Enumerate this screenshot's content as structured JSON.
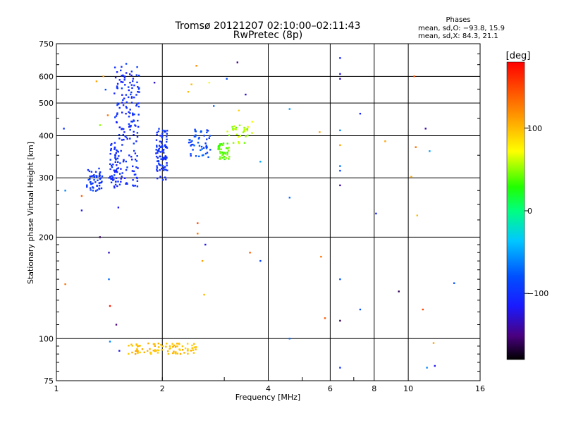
{
  "chart_data": {
    "type": "scatter",
    "title": "Tromsø 20121207 02:10:00–02:11:43",
    "subtitle": "RwPretec (8p)",
    "xlabel": "Frequency [MHz]",
    "ylabel": "Stationary phase Virtual Height [km]",
    "x_scale": "log",
    "y_scale": "log",
    "xlim": [
      1,
      16
    ],
    "ylim": [
      75,
      750
    ],
    "x_ticks": [
      "1",
      "2",
      "4",
      "6",
      "8",
      "10",
      "16"
    ],
    "x_tick_values": [
      1,
      2,
      4,
      6,
      8,
      10,
      16
    ],
    "y_ticks": [
      "75",
      "100",
      "200",
      "300",
      "400",
      "500",
      "600",
      "750"
    ],
    "y_tick_values": [
      75,
      100,
      200,
      300,
      400,
      500,
      600,
      750
    ],
    "grid": true,
    "stats": {
      "heading": "Phases",
      "line_o": "mean, sd,O: −93.8, 15.9",
      "line_x": "mean, sd,X:  84.3, 21.1"
    },
    "colorbar": {
      "label": "[deg]",
      "ticks": [
        "100",
        "0",
        "−100"
      ],
      "tick_values": [
        100,
        0,
        -100
      ],
      "range": [
        -180,
        180
      ]
    },
    "clusters": [
      {
        "x": [
          1.22,
          1.35
        ],
        "y": [
          270,
          320
        ],
        "phase_range": [
          -105,
          -90
        ],
        "n": 50
      },
      {
        "x": [
          1.4,
          1.5
        ],
        "y": [
          290,
          380
        ],
        "phase_range": [
          -110,
          -95
        ],
        "n": 40
      },
      {
        "x": [
          1.46,
          1.72
        ],
        "y": [
          280,
          660
        ],
        "phase_range": [
          -115,
          -90
        ],
        "n": 180
      },
      {
        "x": [
          1.92,
          2.07
        ],
        "y": [
          295,
          420
        ],
        "phase_range": [
          -110,
          -90
        ],
        "n": 90
      },
      {
        "x": [
          2.38,
          2.75
        ],
        "y": [
          345,
          420
        ],
        "phase_range": [
          -100,
          -70
        ],
        "n": 50
      },
      {
        "x": [
          2.88,
          3.1
        ],
        "y": [
          340,
          380
        ],
        "phase_range": [
          30,
          50
        ],
        "n": 45
      },
      {
        "x": [
          3.05,
          3.6
        ],
        "y": [
          380,
          430
        ],
        "phase_range": [
          40,
          70
        ],
        "n": 30
      },
      {
        "x": [
          1.6,
          2.5
        ],
        "y": [
          90,
          97
        ],
        "phase_range": [
          90,
          110
        ],
        "n": 90
      }
    ],
    "points": [
      {
        "x": 1.05,
        "y": 420,
        "p": -100
      },
      {
        "x": 1.06,
        "y": 275,
        "p": -60
      },
      {
        "x": 1.06,
        "y": 145,
        "p": 130
      },
      {
        "x": 1.18,
        "y": 240,
        "p": -120
      },
      {
        "x": 1.18,
        "y": 265,
        "p": 140
      },
      {
        "x": 1.27,
        "y": 275,
        "p": -80
      },
      {
        "x": 1.3,
        "y": 580,
        "p": 110
      },
      {
        "x": 1.33,
        "y": 430,
        "p": 50
      },
      {
        "x": 1.33,
        "y": 200,
        "p": -160
      },
      {
        "x": 1.36,
        "y": 600,
        "p": 110
      },
      {
        "x": 1.38,
        "y": 548,
        "p": -80
      },
      {
        "x": 1.4,
        "y": 460,
        "p": 130
      },
      {
        "x": 1.41,
        "y": 180,
        "p": -130
      },
      {
        "x": 1.41,
        "y": 150,
        "p": -70
      },
      {
        "x": 1.42,
        "y": 125,
        "p": 170
      },
      {
        "x": 1.42,
        "y": 98,
        "p": -60
      },
      {
        "x": 1.48,
        "y": 110,
        "p": -150
      },
      {
        "x": 1.5,
        "y": 245,
        "p": -120
      },
      {
        "x": 1.51,
        "y": 92,
        "p": -120
      },
      {
        "x": 1.9,
        "y": 575,
        "p": -130
      },
      {
        "x": 2.37,
        "y": 540,
        "p": 100
      },
      {
        "x": 2.42,
        "y": 568,
        "p": 100
      },
      {
        "x": 2.5,
        "y": 645,
        "p": 120
      },
      {
        "x": 2.52,
        "y": 220,
        "p": 150
      },
      {
        "x": 2.52,
        "y": 205,
        "p": 130
      },
      {
        "x": 2.6,
        "y": 170,
        "p": 110
      },
      {
        "x": 2.63,
        "y": 135,
        "p": 100
      },
      {
        "x": 2.65,
        "y": 190,
        "p": -120
      },
      {
        "x": 2.72,
        "y": 575,
        "p": 70
      },
      {
        "x": 2.8,
        "y": 490,
        "p": -70
      },
      {
        "x": 3.05,
        "y": 590,
        "p": -80
      },
      {
        "x": 3.27,
        "y": 660,
        "p": -150
      },
      {
        "x": 3.3,
        "y": 475,
        "p": 90
      },
      {
        "x": 3.45,
        "y": 530,
        "p": -130
      },
      {
        "x": 3.55,
        "y": 180,
        "p": 140
      },
      {
        "x": 3.6,
        "y": 440,
        "p": 70
      },
      {
        "x": 3.8,
        "y": 335,
        "p": -50
      },
      {
        "x": 3.8,
        "y": 170,
        "p": -90
      },
      {
        "x": 4.6,
        "y": 480,
        "p": -50
      },
      {
        "x": 4.6,
        "y": 262,
        "p": -70
      },
      {
        "x": 4.6,
        "y": 100,
        "p": -70
      },
      {
        "x": 5.6,
        "y": 410,
        "p": 110
      },
      {
        "x": 5.65,
        "y": 175,
        "p": 130
      },
      {
        "x": 5.8,
        "y": 115,
        "p": 140
      },
      {
        "x": 6.4,
        "y": 680,
        "p": -110
      },
      {
        "x": 6.4,
        "y": 610,
        "p": -120
      },
      {
        "x": 6.4,
        "y": 590,
        "p": -130
      },
      {
        "x": 6.4,
        "y": 415,
        "p": -60
      },
      {
        "x": 6.4,
        "y": 375,
        "p": 110
      },
      {
        "x": 6.4,
        "y": 325,
        "p": -70
      },
      {
        "x": 6.4,
        "y": 315,
        "p": -90
      },
      {
        "x": 6.4,
        "y": 285,
        "p": -140
      },
      {
        "x": 6.4,
        "y": 150,
        "p": -80
      },
      {
        "x": 6.4,
        "y": 113,
        "p": -160
      },
      {
        "x": 6.4,
        "y": 82,
        "p": -100
      },
      {
        "x": 7.3,
        "y": 465,
        "p": -110
      },
      {
        "x": 7.3,
        "y": 122,
        "p": -80
      },
      {
        "x": 8.1,
        "y": 235,
        "p": -110
      },
      {
        "x": 8.6,
        "y": 385,
        "p": 110
      },
      {
        "x": 9.4,
        "y": 138,
        "p": -160
      },
      {
        "x": 10.2,
        "y": 302,
        "p": 110
      },
      {
        "x": 10.4,
        "y": 600,
        "p": 140
      },
      {
        "x": 10.5,
        "y": 370,
        "p": 130
      },
      {
        "x": 10.6,
        "y": 232,
        "p": 100
      },
      {
        "x": 11.0,
        "y": 122,
        "p": 150
      },
      {
        "x": 11.2,
        "y": 420,
        "p": -140
      },
      {
        "x": 11.3,
        "y": 82,
        "p": -60
      },
      {
        "x": 11.5,
        "y": 360,
        "p": -50
      },
      {
        "x": 11.8,
        "y": 97,
        "p": 110
      },
      {
        "x": 11.9,
        "y": 83,
        "p": -120
      },
      {
        "x": 13.5,
        "y": 146,
        "p": -80
      }
    ]
  }
}
